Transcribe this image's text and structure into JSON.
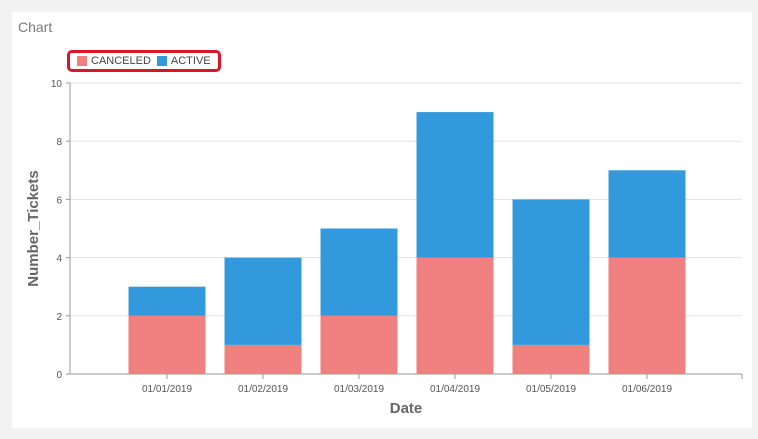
{
  "panel": {
    "title": "Chart"
  },
  "chart_data": {
    "type": "bar",
    "stacked": true,
    "categories": [
      "01/01/2019",
      "01/02/2019",
      "01/03/2019",
      "01/04/2019",
      "01/05/2019",
      "01/06/2019"
    ],
    "series": [
      {
        "name": "CANCELED",
        "values": [
          2,
          1,
          2,
          4,
          1,
          4
        ],
        "color": "#f08080"
      },
      {
        "name": "ACTIVE",
        "values": [
          1,
          3,
          3,
          5,
          5,
          3
        ],
        "color": "#3399dd"
      }
    ],
    "xlabel": "Date",
    "ylabel": "Number_Tickets",
    "ylim": [
      0,
      10
    ],
    "yticks": [
      "0",
      "2",
      "4",
      "6",
      "8",
      "10"
    ],
    "grid": true,
    "legend_position": "top-left",
    "legend_highlight_color": "#d9142b"
  }
}
